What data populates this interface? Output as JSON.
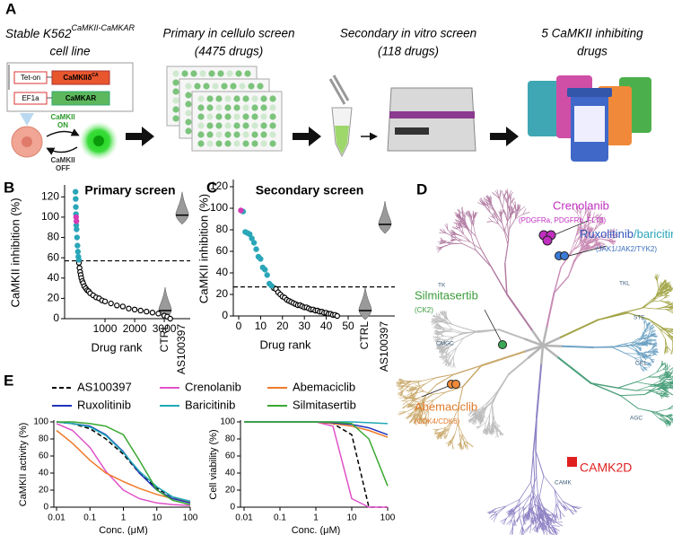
{
  "workflow": {
    "panel": "A",
    "cell_line": "Stable K562",
    "cell_line_sup": "CaMKII-CaMKAR",
    "cell_line_2": "cell line",
    "tet_on": "Tet-on",
    "camkii": "CaMKIIδ",
    "camkii_sup": "CA",
    "ef1a": "EF1a",
    "camkar": "CaMKAR",
    "on_1": "CaMKII",
    "on_2": "ON",
    "off_1": "CaMKII",
    "off_2": "OFF",
    "primary": "Primary in cellulo screen",
    "primary_n": "(4475 drugs)",
    "secondary": "Secondary in vitro screen",
    "secondary_n": "(118 drugs)",
    "final": "5 CaMKII inhibiting",
    "final_2": "drugs"
  },
  "chart_data": [
    {
      "panel": "B",
      "type": "scatter",
      "title": "Primary screen",
      "ylabel": "CaMKII inhibition (%)",
      "xlabel": "Drug rank",
      "xlim": [
        0,
        3300
      ],
      "xticks": [
        1000,
        2000,
        3000
      ],
      "ylim": [
        0,
        130
      ],
      "yticks": [
        0,
        20,
        40,
        60,
        80,
        100,
        120
      ],
      "threshold": 57,
      "series": [
        {
          "color": "#2aa6b8",
          "filled": true,
          "x": [
            5,
            10,
            15,
            20,
            30,
            40,
            55,
            70,
            85,
            100,
            115
          ],
          "values": [
            125,
            118,
            110,
            103,
            92,
            88,
            80,
            72,
            66,
            61,
            58
          ]
        },
        {
          "color": "#d63ab4",
          "filled": true,
          "x": [
            25,
            35
          ],
          "values": [
            100,
            96
          ]
        },
        {
          "color": "#000000",
          "filled": false,
          "x": [
            120,
            140,
            160,
            180,
            200,
            230,
            260,
            300,
            350,
            400,
            450,
            500,
            600,
            700,
            800,
            900,
            1000,
            1200,
            1400,
            1600,
            1800,
            2000,
            2200,
            2400,
            2600,
            2800,
            3000,
            3100,
            3200
          ],
          "values": [
            55,
            50,
            46,
            43,
            40,
            37,
            35,
            32,
            30,
            28,
            27,
            25,
            23,
            21,
            20,
            18,
            17,
            15,
            13,
            12,
            10,
            9,
            8,
            7,
            6,
            5,
            3,
            2,
            0
          ]
        }
      ],
      "controls": {
        "categories": [
          "CTRL",
          "AS100397"
        ],
        "values": [
          8,
          102
        ]
      }
    },
    {
      "panel": "C",
      "type": "scatter",
      "title": "Secondary screen",
      "ylabel": "CaMKII inhibition (%)",
      "xlabel": "Drug rank",
      "xlim": [
        0,
        50
      ],
      "xticks": [
        0,
        10,
        20,
        30,
        40,
        50
      ],
      "ylim": [
        0,
        125
      ],
      "yticks": [
        0,
        20,
        40,
        60,
        80,
        100,
        120
      ],
      "threshold": 27,
      "series": [
        {
          "color": "#2aa6b8",
          "filled": true,
          "x": [
            2,
            3,
            4,
            5,
            6,
            7,
            8,
            9,
            10,
            11,
            12,
            13,
            14,
            15
          ],
          "values": [
            97,
            78,
            77,
            76,
            72,
            68,
            62,
            55,
            53,
            45,
            43,
            38,
            30,
            28
          ]
        },
        {
          "color": "#d63ab4",
          "filled": true,
          "x": [
            1
          ],
          "values": [
            98
          ]
        },
        {
          "color": "#000000",
          "filled": false,
          "x": [
            16,
            17,
            18,
            19,
            20,
            21,
            22,
            23,
            24,
            25,
            26,
            27,
            28,
            29,
            30,
            31,
            32,
            33,
            34,
            35,
            36,
            37,
            38,
            39,
            40,
            41,
            42,
            43,
            44,
            45
          ],
          "values": [
            26,
            25,
            22,
            20,
            18,
            17,
            15,
            14,
            13,
            12,
            11,
            10,
            10,
            9,
            8,
            8,
            7,
            6,
            6,
            5,
            5,
            4,
            4,
            3,
            3,
            2,
            2,
            1,
            1,
            0
          ]
        }
      ],
      "controls": {
        "categories": [
          "CTRL",
          "AS100397"
        ],
        "values": [
          5,
          85
        ]
      }
    },
    {
      "panel": "E",
      "type": "line",
      "log_x": true,
      "ylabel": "CaMKII activity (%)",
      "xlabel": "Conc. (μM)",
      "xlim": [
        0.01,
        100
      ],
      "xticks": [
        0.01,
        0.1,
        1,
        10,
        100
      ],
      "ylim": [
        0,
        100
      ],
      "yticks": [
        0,
        20,
        40,
        60,
        80,
        100
      ],
      "x": [
        0.01,
        0.03,
        0.1,
        0.3,
        1,
        3,
        10,
        30,
        100
      ],
      "series": [
        {
          "name": "AS100397",
          "color": "#000000",
          "dash": true,
          "values": [
            100,
            98,
            92,
            80,
            62,
            40,
            22,
            12,
            6
          ]
        },
        {
          "name": "Crenolanib",
          "color": "#e052c8",
          "dash": false,
          "values": [
            98,
            90,
            70,
            42,
            20,
            10,
            5,
            3,
            2
          ]
        },
        {
          "name": "Abemaciclib",
          "color": "#f07a2a",
          "dash": false,
          "values": [
            90,
            75,
            55,
            40,
            30,
            22,
            15,
            10,
            6
          ]
        },
        {
          "name": "Ruxolitinib",
          "color": "#2233bb",
          "dash": false,
          "values": [
            100,
            98,
            95,
            85,
            65,
            40,
            20,
            10,
            5
          ]
        },
        {
          "name": "Baricitinib",
          "color": "#20a9b5",
          "dash": false,
          "values": [
            100,
            98,
            94,
            84,
            64,
            42,
            24,
            12,
            7
          ]
        },
        {
          "name": "Silmitasertib",
          "color": "#3aa832",
          "dash": false,
          "values": [
            100,
            100,
            98,
            95,
            85,
            55,
            20,
            8,
            3
          ]
        }
      ]
    },
    {
      "type": "line",
      "log_x": true,
      "ylabel": "Cell viability (%)",
      "xlabel": "Conc. (μM)",
      "xlim": [
        0.01,
        100
      ],
      "xticks": [
        0.01,
        0.1,
        1,
        10,
        100
      ],
      "ylim": [
        0,
        100
      ],
      "yticks": [
        0,
        20,
        40,
        60,
        80,
        100
      ],
      "x": [
        0.01,
        0.03,
        0.1,
        0.3,
        1,
        3,
        10,
        30,
        100
      ],
      "series": [
        {
          "color": "#000000",
          "dash": true,
          "values": [
            100,
            100,
            100,
            100,
            100,
            98,
            85,
            0,
            0
          ]
        },
        {
          "color": "#e052c8",
          "dash": false,
          "values": [
            100,
            100,
            100,
            100,
            100,
            95,
            10,
            0,
            0
          ]
        },
        {
          "color": "#f07a2a",
          "dash": false,
          "values": [
            100,
            100,
            100,
            100,
            100,
            98,
            95,
            90,
            82
          ]
        },
        {
          "color": "#2233bb",
          "dash": false,
          "values": [
            100,
            100,
            100,
            100,
            100,
            99,
            97,
            93,
            85
          ]
        },
        {
          "color": "#20a9b5",
          "dash": false,
          "values": [
            100,
            100,
            100,
            100,
            100,
            100,
            100,
            99,
            98
          ]
        },
        {
          "color": "#3aa832",
          "dash": false,
          "values": [
            100,
            100,
            100,
            100,
            100,
            100,
            98,
            80,
            25
          ]
        }
      ]
    }
  ],
  "kinome": {
    "panel": "D",
    "crenolanib": "Crenolanib",
    "crenolanib_targets": "(PDGFRa, PDGFRb, FLT3)",
    "ruxolitinib": "Ruxolitinib",
    "baricitinib": "/baricitinib",
    "jak_targets": "(JAK1/JAK2/TYK2)",
    "silmitasertib": "Silmitasertib",
    "silmitasertib_targets": "(CK2)",
    "abemaciclib": "Abemaciclib",
    "abemaciclib_targets": "(CDK4/CDK6)",
    "camk2d": "CAMK2D",
    "groups": [
      "TK",
      "TKL",
      "STE",
      "CK1",
      "AGC",
      "CAMK",
      "CMGC"
    ]
  }
}
